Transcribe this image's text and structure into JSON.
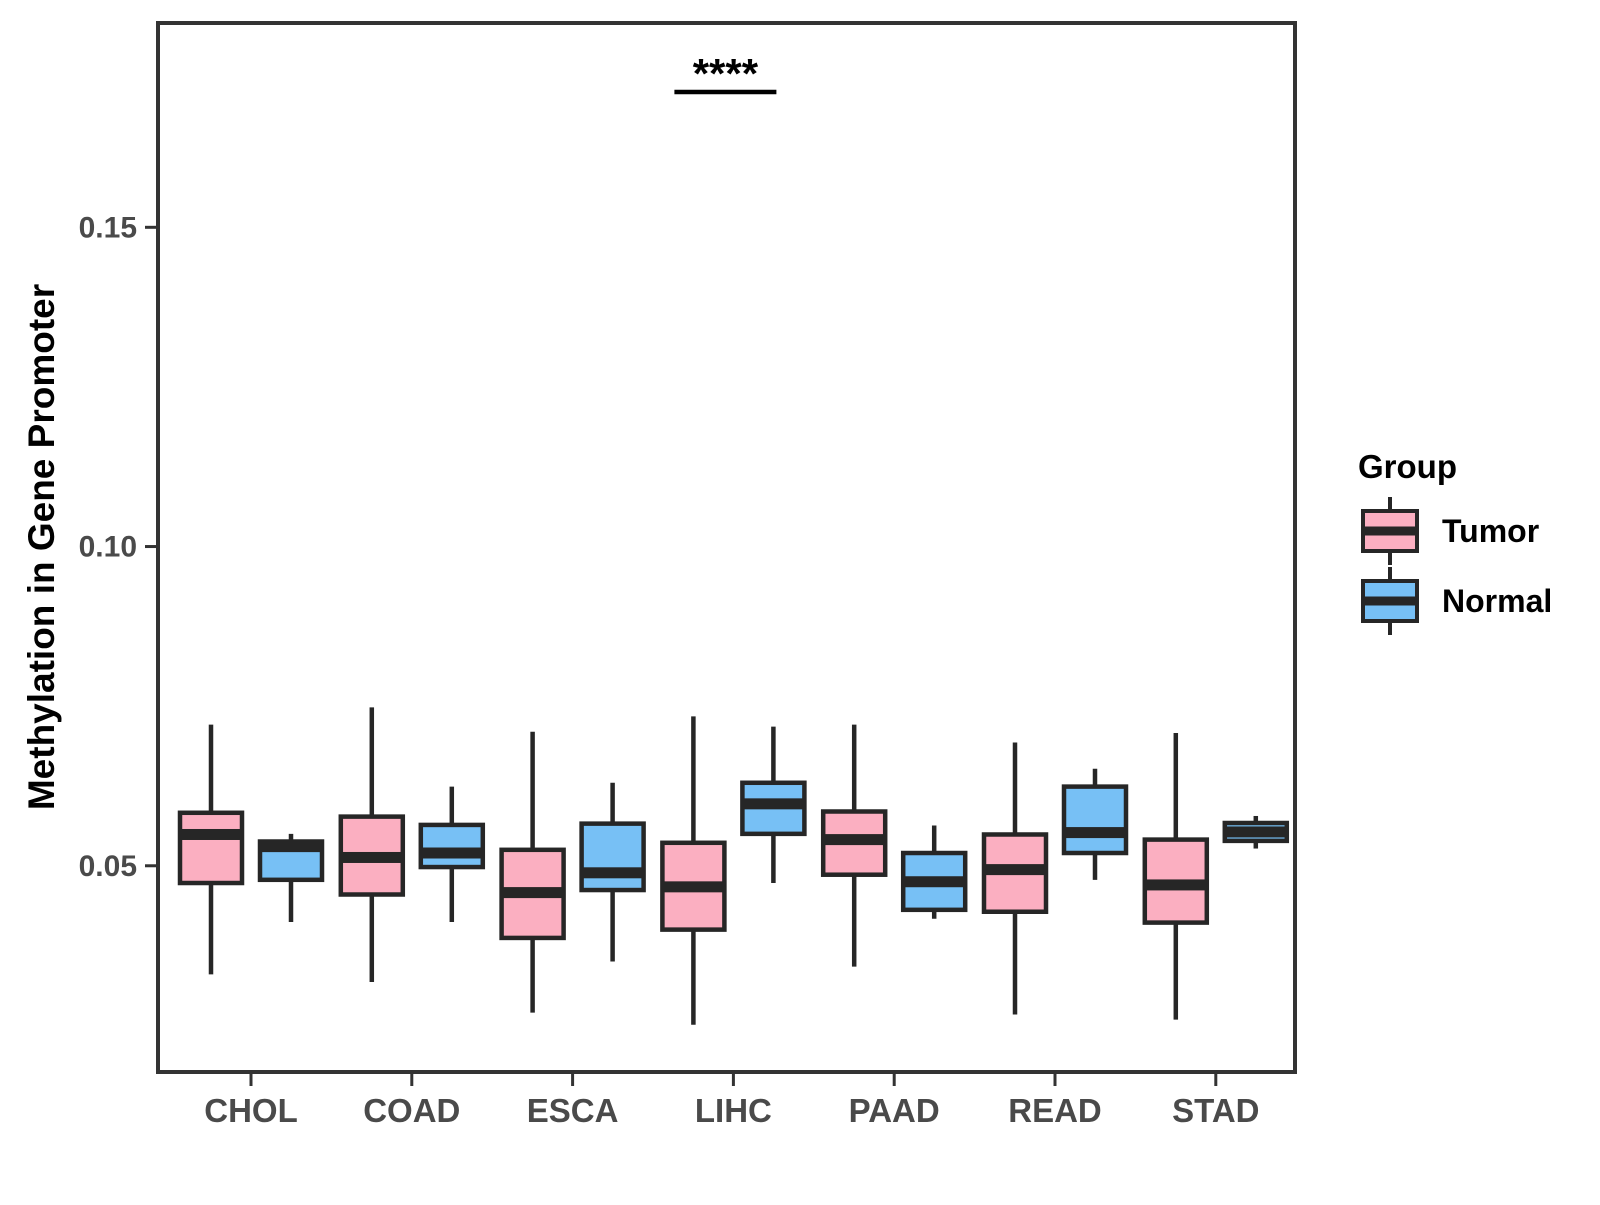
{
  "chart_data": {
    "type": "boxplot",
    "title": "",
    "xlabel": "",
    "ylabel": "Methylation in Gene Promoter",
    "categories": [
      "CHOL",
      "COAD",
      "ESCA",
      "LIHC",
      "PAAD",
      "READ",
      "STAD"
    ],
    "legend_title": "Group",
    "legend_position": "right",
    "grid": false,
    "groups": [
      {
        "name": "Tumor",
        "color": "#FBAFC1"
      },
      {
        "name": "Normal",
        "color": "#77C0F5"
      }
    ],
    "ylim": [
      0.0177,
      0.182
    ],
    "yticks": [
      0.05,
      0.1,
      0.15
    ],
    "ytick_labels": [
      "0.05",
      "0.10",
      "0.15"
    ],
    "significance": {
      "label": "****",
      "category": "LIHC"
    },
    "series": [
      {
        "name": "Tumor",
        "boxes": [
          {
            "category": "CHOL",
            "whislo": 0.033,
            "q1": 0.0473,
            "med": 0.0549,
            "q3": 0.0583,
            "whishi": 0.0721
          },
          {
            "category": "COAD",
            "whislo": 0.0318,
            "q1": 0.0455,
            "med": 0.0513,
            "q3": 0.0577,
            "whishi": 0.0748
          },
          {
            "category": "ESCA",
            "whislo": 0.027,
            "q1": 0.0387,
            "med": 0.0458,
            "q3": 0.0525,
            "whishi": 0.071
          },
          {
            "category": "LIHC",
            "whislo": 0.0251,
            "q1": 0.04,
            "med": 0.0467,
            "q3": 0.0536,
            "whishi": 0.0734
          },
          {
            "category": "PAAD",
            "whislo": 0.0342,
            "q1": 0.0486,
            "med": 0.0541,
            "q3": 0.0585,
            "whishi": 0.0721
          },
          {
            "category": "READ",
            "whislo": 0.0267,
            "q1": 0.0428,
            "med": 0.0494,
            "q3": 0.0549,
            "whishi": 0.0693
          },
          {
            "category": "STAD",
            "whislo": 0.0259,
            "q1": 0.0411,
            "med": 0.047,
            "q3": 0.0541,
            "whishi": 0.0708
          }
        ]
      },
      {
        "name": "Normal",
        "boxes": [
          {
            "category": "CHOL",
            "whislo": 0.0412,
            "q1": 0.0478,
            "med": 0.053,
            "q3": 0.0538,
            "whishi": 0.055
          },
          {
            "category": "COAD",
            "whislo": 0.0412,
            "q1": 0.0498,
            "med": 0.052,
            "q3": 0.0564,
            "whishi": 0.0624
          },
          {
            "category": "ESCA",
            "whislo": 0.035,
            "q1": 0.0462,
            "med": 0.0489,
            "q3": 0.0566,
            "whishi": 0.063
          },
          {
            "category": "LIHC",
            "whislo": 0.0473,
            "q1": 0.055,
            "med": 0.0597,
            "q3": 0.063,
            "whishi": 0.0718
          },
          {
            "category": "PAAD",
            "whislo": 0.0417,
            "q1": 0.0431,
            "med": 0.0475,
            "q3": 0.052,
            "whishi": 0.0563
          },
          {
            "category": "READ",
            "whislo": 0.0478,
            "q1": 0.052,
            "med": 0.0552,
            "q3": 0.0624,
            "whishi": 0.0652
          },
          {
            "category": "STAD",
            "whislo": 0.0527,
            "q1": 0.0539,
            "med": 0.0553,
            "q3": 0.0567,
            "whishi": 0.0578
          }
        ]
      }
    ],
    "colors": {
      "box_border": "#262626",
      "panel_border": "#333333",
      "tick_text": "#4a4a4a",
      "axis_text": "#000000"
    }
  }
}
